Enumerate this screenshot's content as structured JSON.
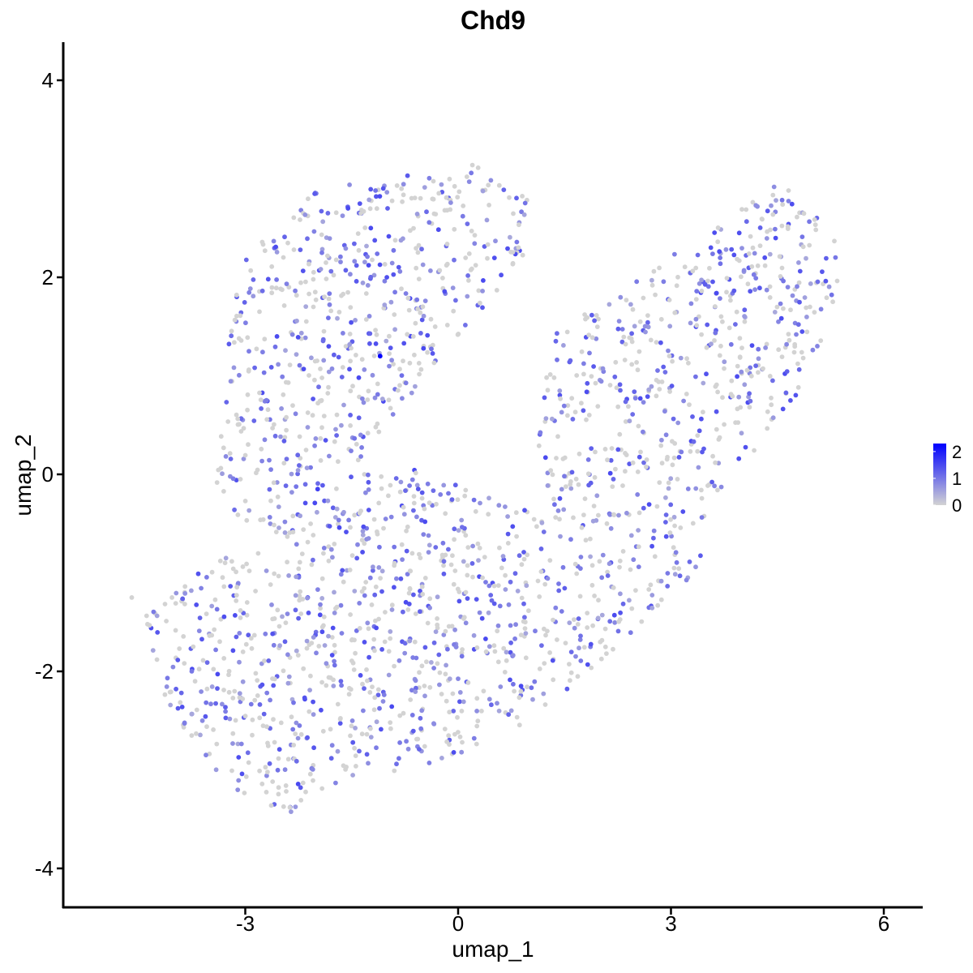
{
  "chart_data": {
    "type": "scatter",
    "title": "Chd9",
    "xlabel": "umap_1",
    "ylabel": "umap_2",
    "xlim": [
      -5.6,
      6.55
    ],
    "ylim": [
      -4.4,
      4.4
    ],
    "x_ticks": [
      -3,
      0,
      3,
      6
    ],
    "y_ticks": [
      -4,
      -2,
      0,
      2,
      4
    ],
    "x_tick_labels": [
      "-3",
      "0",
      "3",
      "6"
    ],
    "y_tick_labels": [
      "-4",
      "-2",
      "0",
      "2",
      "4"
    ],
    "grid": false,
    "legend": {
      "placement": "right",
      "type": "colorbar",
      "min": 0,
      "max": 2.3,
      "ticks": [
        0,
        1,
        2
      ],
      "tick_labels": [
        "0",
        "1",
        "2"
      ],
      "low_color": "#d3d3d3",
      "high_color": "#0000ff"
    },
    "cluster_shape": {
      "upper_left": [
        [
          -3.15,
          2.05
        ],
        [
          -2.2,
          2.85
        ],
        [
          -1.2,
          3.0
        ],
        [
          0.2,
          3.15
        ],
        [
          1.0,
          2.8
        ],
        [
          1.0,
          2.2
        ],
        [
          0.1,
          1.5
        ],
        [
          -1.5,
          0.0
        ],
        [
          -2.8,
          -0.8
        ],
        [
          -3.4,
          -0.1
        ]
      ],
      "right_lobe": [
        [
          1.3,
          1.4
        ],
        [
          2.5,
          2.0
        ],
        [
          3.6,
          2.5
        ],
        [
          4.5,
          3.0
        ],
        [
          5.35,
          2.4
        ],
        [
          5.4,
          1.7
        ],
        [
          4.8,
          0.8
        ],
        [
          3.8,
          -0.1
        ],
        [
          2.7,
          -1.2
        ],
        [
          1.6,
          -1.0
        ],
        [
          1.1,
          0.3
        ]
      ],
      "lower": [
        [
          -4.5,
          -1.3
        ],
        [
          -3.4,
          -0.9
        ],
        [
          -2.0,
          -0.1
        ],
        [
          -0.8,
          0.1
        ],
        [
          1.0,
          -0.3
        ],
        [
          2.2,
          -0.6
        ],
        [
          3.6,
          -0.8
        ],
        [
          2.4,
          -1.7
        ],
        [
          1.0,
          -2.5
        ],
        [
          -0.3,
          -2.95
        ],
        [
          -1.8,
          -3.15
        ],
        [
          -2.4,
          -3.5
        ],
        [
          -3.4,
          -3.1
        ],
        [
          -4.2,
          -2.2
        ]
      ],
      "point_count": 2200,
      "note_points": [
        [
          -1.1,
          1.2,
          2.3
        ],
        [
          -1.98,
          -0.15,
          1.6
        ],
        [
          -4.6,
          -1.25,
          0
        ]
      ]
    }
  }
}
